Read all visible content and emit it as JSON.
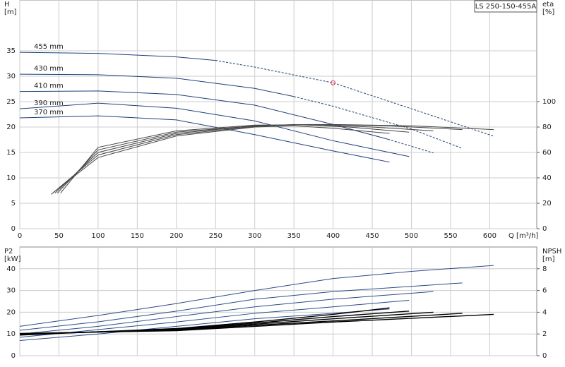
{
  "model": "LS 250-150-455A",
  "chart_data": [
    {
      "type": "line",
      "y_label": "H",
      "y_unit": "[m]",
      "y2_label": "eta",
      "y2_unit": "[%]",
      "x_label": "Q [m³/h]",
      "xlim": [
        0,
        660
      ],
      "xticks": [
        0,
        50,
        100,
        150,
        200,
        250,
        300,
        350,
        400,
        450,
        500,
        550,
        600
      ],
      "ylim": [
        0,
        45
      ],
      "yticks": [
        0,
        5,
        10,
        15,
        20,
        25,
        30,
        35
      ],
      "y2lim": [
        0,
        180
      ],
      "y2ticks": [
        0,
        20,
        40,
        60,
        80,
        100
      ],
      "grid": true,
      "marker": {
        "x": 400,
        "y": 28.7,
        "color": "#e0405a"
      },
      "series": [
        {
          "name": "455 mm",
          "color": "#1f3f7a",
          "dashed_from_x": 250,
          "x": [
            0,
            100,
            200,
            250,
            300,
            400,
            500,
            605
          ],
          "values": [
            34.7,
            34.5,
            33.8,
            33.1,
            31.8,
            28.7,
            23.6,
            18.2
          ]
        },
        {
          "name": "430 mm",
          "color": "#1f3f7a",
          "dashed_from_x": 350,
          "x": [
            0,
            100,
            200,
            300,
            350,
            400,
            500,
            565
          ],
          "values": [
            30.4,
            30.3,
            29.6,
            27.6,
            26.0,
            24.1,
            19.6,
            15.8
          ]
        },
        {
          "name": "410 mm",
          "color": "#1f3f7a",
          "dashed_from_x": 470,
          "x": [
            0,
            100,
            200,
            300,
            400,
            470,
            528
          ],
          "values": [
            27.0,
            27.1,
            26.4,
            24.3,
            20.5,
            17.6,
            14.9
          ]
        },
        {
          "name": "390 mm",
          "color": "#1f3f7a",
          "x": [
            0,
            100,
            200,
            300,
            400,
            497
          ],
          "values": [
            23.6,
            24.7,
            23.7,
            21.2,
            17.3,
            14.2
          ]
        },
        {
          "name": "370 mm",
          "color": "#1f3f7a",
          "x": [
            0,
            100,
            200,
            300,
            400,
            472
          ],
          "values": [
            21.8,
            22.2,
            21.4,
            18.5,
            15.3,
            13.1
          ]
        },
        {
          "axis": "y2",
          "color": "#444",
          "x": [
            52,
            100,
            200,
            300,
            400,
            500,
            605
          ],
          "values": [
            28,
            64,
            77,
            81.5,
            82,
            81,
            78
          ]
        },
        {
          "axis": "y2",
          "color": "#444",
          "x": [
            48,
            100,
            200,
            300,
            380,
            470,
            565
          ],
          "values": [
            28,
            62,
            76,
            81,
            82,
            81,
            78
          ]
        },
        {
          "axis": "y2",
          "color": "#444",
          "x": [
            45,
            100,
            200,
            300,
            370,
            450,
            528
          ],
          "values": [
            28,
            60,
            75,
            81,
            82,
            80,
            77
          ]
        },
        {
          "axis": "y2",
          "color": "#444",
          "x": [
            42,
            100,
            200,
            300,
            350,
            420,
            497
          ],
          "values": [
            28,
            58,
            74,
            80.5,
            82,
            80,
            76
          ]
        },
        {
          "axis": "y2",
          "color": "#444",
          "x": [
            40,
            100,
            200,
            300,
            350,
            400,
            472
          ],
          "values": [
            27,
            56,
            73,
            80,
            81,
            79,
            75
          ]
        }
      ]
    },
    {
      "type": "line",
      "y_label": "P2",
      "y_unit": "[kW]",
      "y2_label": "NPSH",
      "y2_unit": "[m]",
      "xlim": [
        0,
        660
      ],
      "ylim": [
        0,
        50
      ],
      "yticks": [
        0,
        10,
        20,
        30,
        40
      ],
      "y2lim": [
        0,
        10
      ],
      "y2ticks": [
        0,
        2,
        4,
        6,
        8
      ],
      "grid": true,
      "series": [
        {
          "color": "#2a4a8a",
          "x": [
            0,
            100,
            200,
            300,
            400,
            500,
            605
          ],
          "values": [
            13.5,
            18.5,
            24,
            30,
            35.5,
            38.8,
            41.5
          ]
        },
        {
          "color": "#2a4a8a",
          "x": [
            0,
            100,
            200,
            300,
            400,
            565
          ],
          "values": [
            11.7,
            15.6,
            20.5,
            26,
            29.5,
            33.5
          ]
        },
        {
          "color": "#2a4a8a",
          "x": [
            0,
            100,
            200,
            300,
            400,
            528
          ],
          "values": [
            10,
            13.5,
            18,
            22.5,
            26,
            29.5
          ]
        },
        {
          "color": "#2a4a8a",
          "x": [
            0,
            100,
            200,
            300,
            400,
            497
          ],
          "values": [
            8.5,
            12,
            15.5,
            19.5,
            22.5,
            25.5
          ]
        },
        {
          "color": "#2a4a8a",
          "x": [
            0,
            100,
            200,
            300,
            400,
            472
          ],
          "values": [
            7,
            10,
            13.5,
            17,
            19.5,
            21.5
          ]
        },
        {
          "axis": "y2",
          "color": "#000",
          "x": [
            0,
            200,
            300,
            400,
            472
          ],
          "values": [
            1.9,
            2.5,
            3.1,
            3.8,
            4.4
          ]
        },
        {
          "axis": "y2",
          "color": "#000",
          "x": [
            0,
            200,
            300,
            400,
            497
          ],
          "values": [
            1.95,
            2.45,
            3.0,
            3.6,
            4.1
          ]
        },
        {
          "axis": "y2",
          "color": "#000",
          "x": [
            0,
            200,
            300,
            400,
            528
          ],
          "values": [
            2.0,
            2.4,
            2.9,
            3.4,
            4.0
          ]
        },
        {
          "axis": "y2",
          "color": "#000",
          "x": [
            0,
            200,
            300,
            400,
            565
          ],
          "values": [
            2.0,
            2.35,
            2.8,
            3.2,
            3.9
          ]
        },
        {
          "axis": "y2",
          "color": "#000",
          "x": [
            0,
            200,
            300,
            400,
            605
          ],
          "values": [
            2.05,
            2.3,
            2.7,
            3.1,
            3.8
          ]
        }
      ]
    }
  ]
}
